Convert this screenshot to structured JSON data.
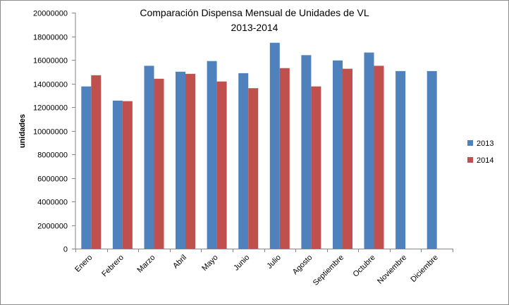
{
  "chart_data": {
    "type": "bar",
    "title": "Comparación Dispensa Mensual de Unidades de VL",
    "subtitle": "2013-2014",
    "xlabel": "",
    "ylabel": "unidades",
    "ylim": [
      0,
      20000000
    ],
    "yticks": [
      0,
      2000000,
      4000000,
      6000000,
      8000000,
      10000000,
      12000000,
      14000000,
      16000000,
      18000000,
      20000000
    ],
    "ytick_labels": [
      "0",
      "2000000",
      "4000000",
      "6000000",
      "8000000",
      "10000000",
      "12000000",
      "14000000",
      "16000000",
      "18000000",
      "20000000"
    ],
    "grid": false,
    "legend_position": "right",
    "categories": [
      "Enero",
      "Febrero",
      "Marzo",
      "Abril",
      "Mayo",
      "Junio",
      "Julio",
      "Agosto",
      "Septiembre",
      "Octubre",
      "Noviembre",
      "Diciembre"
    ],
    "series": [
      {
        "name": "2013",
        "color": "#4f81bd",
        "values": [
          13750000,
          12550000,
          15500000,
          15000000,
          15900000,
          14870000,
          17450000,
          16400000,
          15950000,
          16620000,
          15050000,
          15050000
        ]
      },
      {
        "name": "2014",
        "color": "#c0504d",
        "values": [
          14700000,
          12500000,
          14400000,
          14820000,
          14170000,
          13600000,
          15300000,
          13750000,
          15250000,
          15500000,
          null,
          null
        ]
      }
    ]
  }
}
